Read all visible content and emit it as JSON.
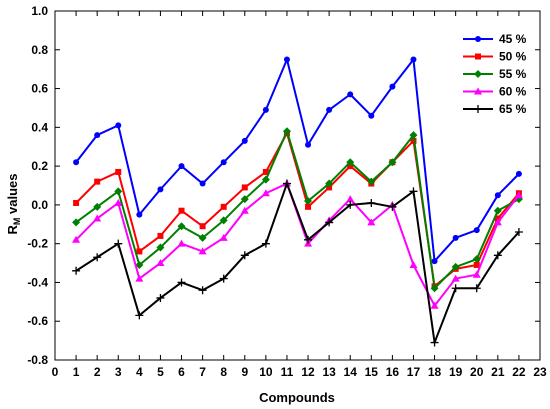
{
  "chart_data": {
    "type": "line",
    "xlabel": "Compounds",
    "ylabel_main": "R",
    "ylabel_sub": "M",
    "ylabel_rest": " values",
    "xlim": [
      0,
      23
    ],
    "ylim": [
      -0.8,
      1.0
    ],
    "xticks": [
      0,
      1,
      2,
      3,
      4,
      5,
      6,
      7,
      8,
      9,
      10,
      11,
      12,
      13,
      14,
      15,
      16,
      17,
      18,
      19,
      20,
      21,
      22,
      23
    ],
    "yticks": [
      -0.8,
      -0.6,
      -0.4,
      -0.2,
      0.0,
      0.2,
      0.4,
      0.6,
      0.8,
      1.0
    ],
    "ytick_labels": [
      "-0.8",
      "-0.6",
      "-0.4",
      "-0.2",
      "0.0",
      "0.2",
      "0.4",
      "0.6",
      "0.8",
      "1.0"
    ],
    "legend_position": "top-right",
    "grid": false,
    "x": [
      1,
      2,
      3,
      4,
      5,
      6,
      7,
      8,
      9,
      10,
      11,
      12,
      13,
      14,
      15,
      16,
      17,
      18,
      19,
      20,
      21,
      22
    ],
    "series": [
      {
        "name": "45 %",
        "color": "#0000ff",
        "marker": "circle",
        "values": [
          0.22,
          0.36,
          0.41,
          -0.05,
          0.08,
          0.2,
          0.11,
          0.22,
          0.33,
          0.49,
          0.75,
          0.31,
          0.49,
          0.57,
          0.46,
          0.61,
          0.75,
          -0.29,
          -0.17,
          -0.13,
          0.05,
          0.16
        ]
      },
      {
        "name": "50 %",
        "color": "#ff0000",
        "marker": "square",
        "values": [
          0.01,
          0.12,
          0.17,
          -0.24,
          -0.16,
          -0.03,
          -0.11,
          -0.01,
          0.09,
          0.17,
          0.37,
          -0.01,
          0.09,
          0.2,
          0.11,
          0.22,
          0.33,
          -0.42,
          -0.33,
          -0.31,
          -0.07,
          0.06
        ]
      },
      {
        "name": "55 %",
        "color": "#008000",
        "marker": "diamond",
        "values": [
          -0.09,
          -0.01,
          0.07,
          -0.31,
          -0.22,
          -0.11,
          -0.17,
          -0.08,
          0.03,
          0.13,
          0.38,
          0.02,
          0.11,
          0.22,
          0.12,
          0.22,
          0.36,
          -0.43,
          -0.32,
          -0.28,
          -0.03,
          0.03
        ]
      },
      {
        "name": "60 %",
        "color": "#ff00ff",
        "marker": "triangle",
        "values": [
          -0.18,
          -0.07,
          0.01,
          -0.38,
          -0.3,
          -0.2,
          -0.24,
          -0.17,
          -0.03,
          0.06,
          0.11,
          -0.2,
          -0.08,
          0.03,
          -0.09,
          0.0,
          -0.31,
          -0.52,
          -0.38,
          -0.36,
          -0.09,
          0.05
        ]
      },
      {
        "name": "65 %",
        "color": "#000000",
        "marker": "plus",
        "values": [
          -0.34,
          -0.27,
          -0.2,
          -0.57,
          -0.48,
          -0.4,
          -0.44,
          -0.38,
          -0.26,
          -0.2,
          0.11,
          -0.18,
          -0.09,
          0.0,
          0.01,
          -0.01,
          0.07,
          -0.71,
          -0.43,
          -0.43,
          -0.26,
          -0.14
        ]
      }
    ]
  }
}
